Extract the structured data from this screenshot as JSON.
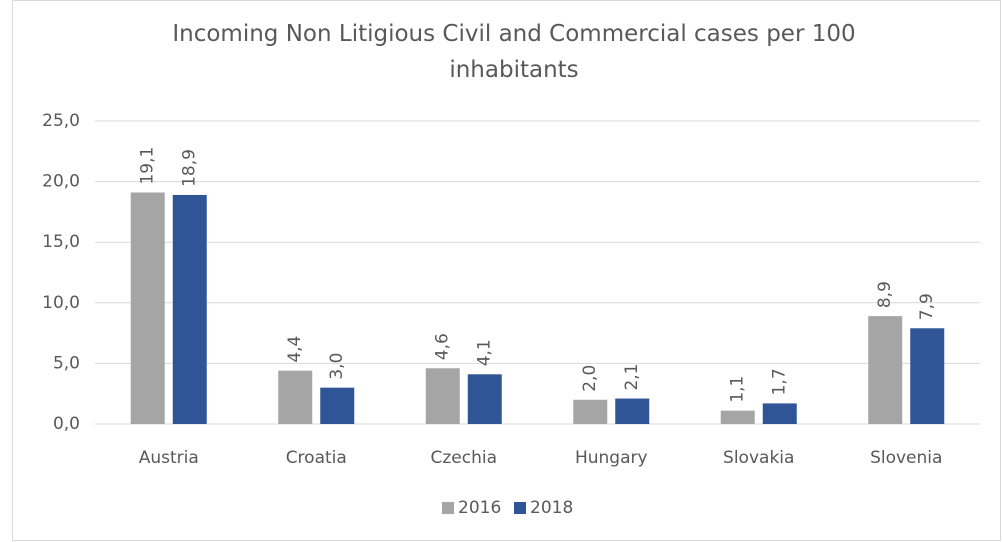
{
  "chart_data": {
    "type": "bar",
    "title": "Incoming Non Litigious Civil and Commercial cases per 100 inhabitants",
    "categories": [
      "Austria",
      "Croatia",
      "Czechia",
      "Hungary",
      "Slovakia",
      "Slovenia"
    ],
    "series": [
      {
        "name": "2016",
        "color": "#a5a5a5",
        "values": [
          19.1,
          4.4,
          4.6,
          2.0,
          1.1,
          8.9
        ],
        "value_labels": [
          "19,1",
          "4,4",
          "4,6",
          "2,0",
          "1,1",
          "8,9"
        ]
      },
      {
        "name": "2018",
        "color": "#2f5597",
        "values": [
          18.9,
          3.0,
          4.1,
          2.1,
          1.7,
          7.9
        ],
        "value_labels": [
          "18,9",
          "3,0",
          "4,1",
          "2,1",
          "1,7",
          "7,9"
        ]
      }
    ],
    "ylim": [
      0,
      25
    ],
    "yticks": [
      {
        "value": 0,
        "label": "0,0"
      },
      {
        "value": 5,
        "label": "5,0"
      },
      {
        "value": 10,
        "label": "10,0"
      },
      {
        "value": 15,
        "label": "15,0"
      },
      {
        "value": 20,
        "label": "20,0"
      },
      {
        "value": 25,
        "label": "25,0"
      }
    ],
    "grid": true,
    "legend": "bottom"
  }
}
